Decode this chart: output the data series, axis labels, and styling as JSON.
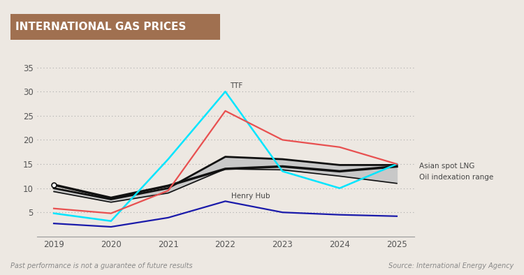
{
  "title": "INTERNATIONAL GAS PRICES",
  "title_bg_color": "#a07050",
  "title_text_color": "#ffffff",
  "bg_color": "#ede8e2",
  "plot_bg_color": "#ede8e2",
  "years": [
    2019,
    2020,
    2021,
    2022,
    2023,
    2024,
    2025
  ],
  "ttf": [
    4.8,
    3.2,
    16.0,
    30.0,
    13.5,
    10.0,
    15.0
  ],
  "red_line": [
    5.8,
    4.8,
    9.5,
    26.0,
    20.0,
    18.5,
    15.0
  ],
  "asian_spot_lng": [
    10.7,
    8.0,
    10.5,
    14.0,
    14.5,
    13.5,
    14.5
  ],
  "oil_index_high": [
    10.0,
    7.7,
    10.0,
    16.5,
    16.0,
    14.8,
    14.8
  ],
  "oil_index_low": [
    9.3,
    7.1,
    9.0,
    14.0,
    13.8,
    12.5,
    11.0
  ],
  "henry_hub": [
    2.7,
    2.0,
    3.9,
    7.3,
    5.0,
    4.5,
    4.2
  ],
  "ttf_color": "#00e5ff",
  "asian_spot_color": "#111111",
  "henry_hub_color": "#1a1aaa",
  "red_line_color": "#e85050",
  "oil_index_fill": "#c8c8c8",
  "footer_left": "Past performance is not a guarantee of future results",
  "footer_right": "Source: International Energy Agency",
  "ylim": [
    0,
    37
  ],
  "yticks": [
    0,
    5,
    10,
    15,
    20,
    25,
    30,
    35
  ]
}
